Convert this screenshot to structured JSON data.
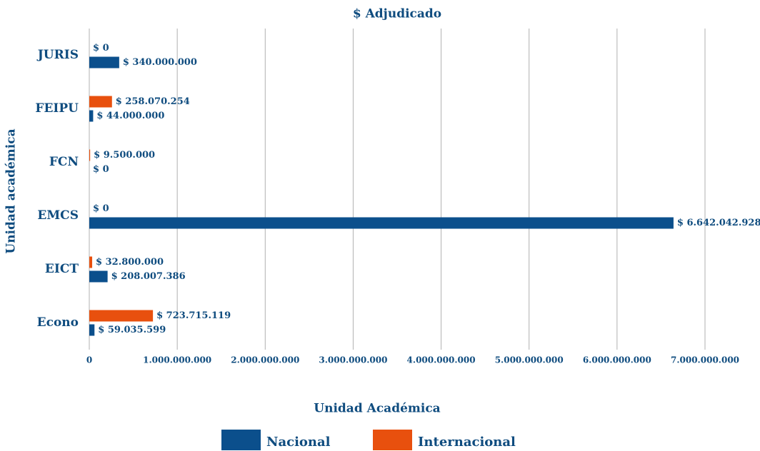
{
  "chart_data": {
    "type": "hbar",
    "title": "$ Adjudicado",
    "x_label": "Unidad Académica",
    "y_label": "Unidad académica",
    "categories": [
      "JURIS",
      "FEIPU",
      "FCN",
      "EMCS",
      "EICT",
      "Econo"
    ],
    "series": [
      {
        "name": "Nacional",
        "color": "#0b4f8c",
        "values": [
          340000000,
          44000000,
          0,
          6642042928,
          208007386,
          59035599
        ],
        "value_labels": [
          "$ 340.000.000",
          "$ 44.000.000",
          "$ 0",
          "$ 6.642.042.928",
          "$ 208.007.386",
          "$ 59.035.599"
        ]
      },
      {
        "name": "Internacional",
        "color": "#e8500e",
        "values": [
          0,
          258070254,
          9500000,
          0,
          32800000,
          723715119
        ],
        "value_labels": [
          "$ 0",
          "$ 258.070.254",
          "$ 9.500.000",
          "$ 0",
          "$ 32.800.000",
          "$ 723.715.119"
        ]
      }
    ],
    "xlim": [
      0,
      7000000000
    ],
    "xticks": [
      0,
      {
        "value": 1000000000,
        "label": "1.000.000.000"
      },
      {
        "value": 2000000000,
        "label": "2.000.000.000"
      },
      {
        "value": 3000000000,
        "label": "3.000.000.000"
      },
      {
        "value": 4000000000,
        "label": "4.000.000.000"
      },
      {
        "value": 5000000000,
        "label": "5.000.000.000"
      },
      {
        "value": 6000000000,
        "label": "6.000.000.000"
      },
      {
        "value": 7000000000,
        "label": "7.000.000.000"
      }
    ],
    "grid": true,
    "legend": "bottom"
  }
}
